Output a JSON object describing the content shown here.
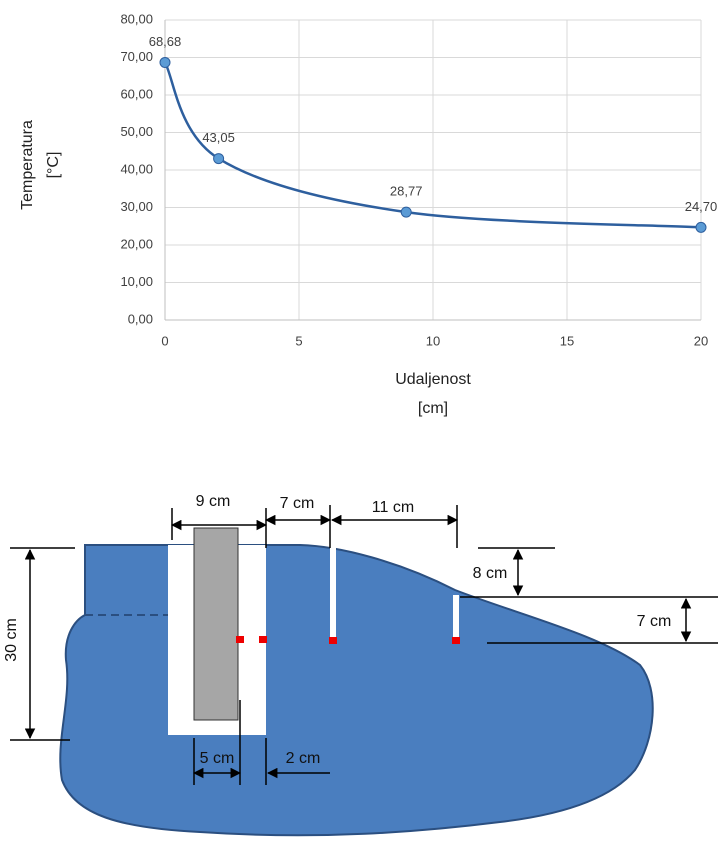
{
  "chart_data": {
    "type": "line",
    "x": [
      0,
      2,
      9,
      20
    ],
    "series": [
      {
        "name": null,
        "color": "#2e5f9e",
        "marker_color": "#5b9bd5",
        "values": [
          68.68,
          43.05,
          28.77,
          24.7
        ],
        "value_labels": [
          "68,68",
          "43,05",
          "28,77",
          "24,70"
        ]
      }
    ],
    "xlim": [
      0,
      20
    ],
    "xticks": [
      0,
      5,
      10,
      15,
      20
    ],
    "ylim": [
      0,
      80
    ],
    "yticks": [
      {
        "value": 0,
        "label": "0,00"
      },
      {
        "value": 10,
        "label": "10,00"
      },
      {
        "value": 20,
        "label": "20,00"
      },
      {
        "value": 30,
        "label": "30,00"
      },
      {
        "value": 40,
        "label": "40,00"
      },
      {
        "value": 50,
        "label": "50,00"
      },
      {
        "value": 60,
        "label": "60,00"
      },
      {
        "value": 70,
        "label": "70,00"
      },
      {
        "value": 80,
        "label": "80,00"
      }
    ],
    "xlabel": [
      "Udaljenost",
      "[cm]"
    ],
    "ylabel": [
      "Temperatura",
      "[°C]"
    ],
    "grid": true,
    "smooth": true
  },
  "diagram": {
    "labels": [
      "9 cm",
      "7 cm",
      "11 cm",
      "8 cm",
      "7 cm",
      "30 cm",
      "5 cm",
      "2 cm"
    ]
  }
}
